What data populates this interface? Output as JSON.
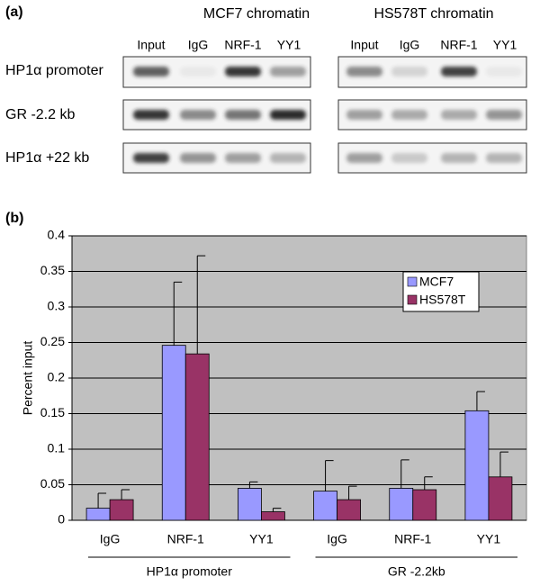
{
  "gel": {
    "label": "(a)",
    "groups": [
      {
        "title": "MCF7 chromatin",
        "lanes": [
          "Input",
          "IgG",
          "NRF-1",
          "YY1"
        ]
      },
      {
        "title": "HS578T chromatin",
        "lanes": [
          "Input",
          "IgG",
          "NRF-1",
          "YY1"
        ]
      }
    ],
    "rows": [
      "HP1α promoter",
      "GR -2.2 kb",
      "HP1α +22 kb"
    ]
  },
  "chart_data": {
    "type": "bar",
    "label": "(b)",
    "ylabel": "Percent  input",
    "categories": [
      "IgG",
      "NRF-1",
      "YY1",
      "IgG",
      "NRF-1",
      "YY1"
    ],
    "groups": [
      "HP1α promoter",
      "GR -2.2kb"
    ],
    "series": [
      {
        "name": "MCF7",
        "color": "#9999ff",
        "values": [
          0.017,
          0.246,
          0.045,
          0.041,
          0.045,
          0.154
        ],
        "errors": [
          0.021,
          0.089,
          0.009,
          0.043,
          0.04,
          0.027
        ]
      },
      {
        "name": "HS578T",
        "color": "#993366",
        "values": [
          0.029,
          0.234,
          0.012,
          0.029,
          0.043,
          0.061
        ],
        "errors": [
          0.014,
          0.138,
          0.005,
          0.019,
          0.018,
          0.035
        ]
      }
    ],
    "ylim": [
      0,
      0.4
    ],
    "yticks": [
      0,
      0.05,
      0.1,
      0.15,
      0.2,
      0.25,
      0.3,
      0.35,
      0.4
    ],
    "grid": true,
    "legend": "upper right"
  }
}
